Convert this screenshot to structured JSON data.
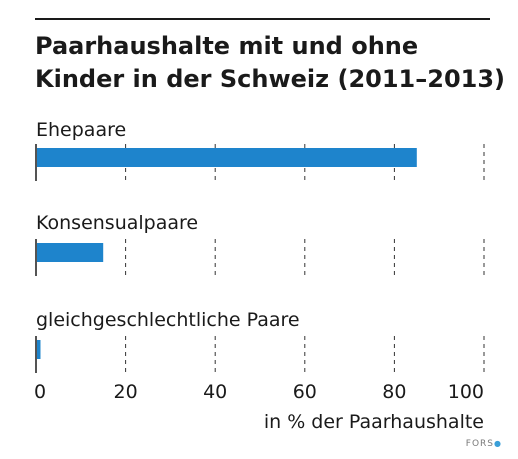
{
  "chart_data": {
    "type": "bar",
    "orientation": "horizontal",
    "title": "Paarhaushalte mit und ohne Kinder in der Schweiz (2011–2013)",
    "categories": [
      "Ehepaare",
      "Konsensualpaare",
      "gleichgeschlechtliche Paare"
    ],
    "values": [
      85,
      15,
      1
    ],
    "xlabel": "in % der Paarhaushalte",
    "xlim": [
      0,
      100
    ],
    "xticks": [
      "0",
      "20",
      "40",
      "60",
      "80",
      "100"
    ],
    "grid": "vertical dashed",
    "bar_color": "#1e84cc"
  },
  "source": {
    "label": "FORS"
  }
}
